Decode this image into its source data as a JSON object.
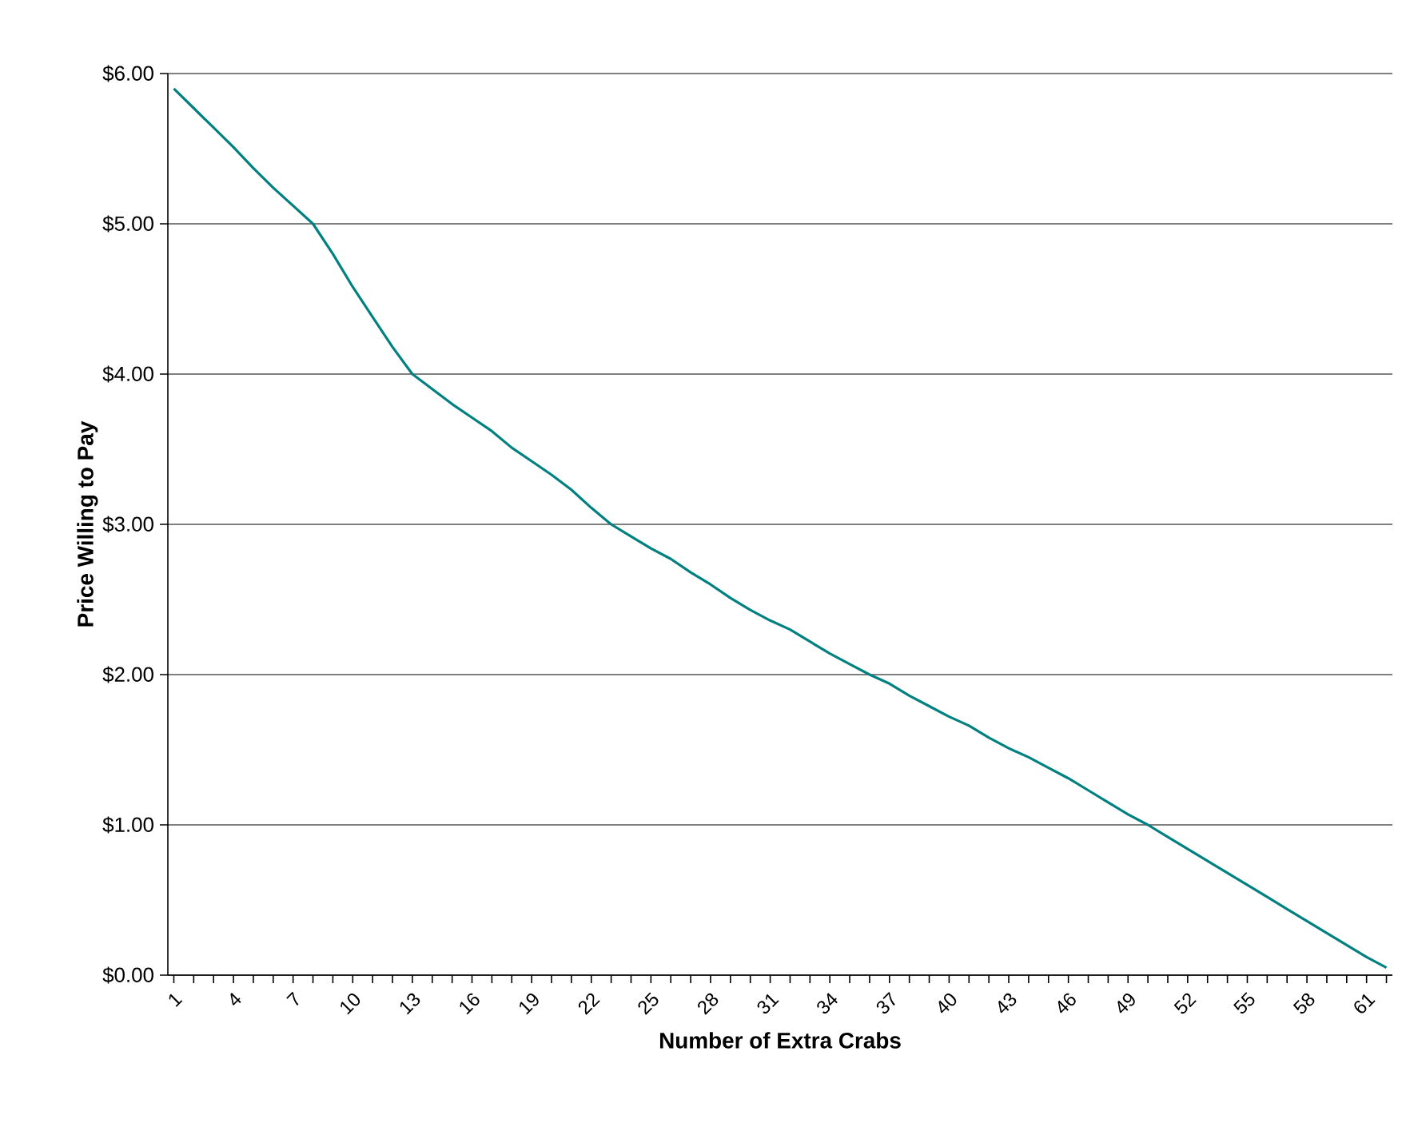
{
  "chart_data": {
    "type": "line",
    "xlabel": "Number of Extra Crabs",
    "ylabel": "Price Willing to Pay",
    "categories": [
      "1",
      null,
      null,
      "4",
      null,
      null,
      "7",
      null,
      null,
      "10",
      null,
      null,
      "13",
      null,
      null,
      "16",
      null,
      null,
      "19",
      null,
      null,
      "22",
      null,
      null,
      "25",
      null,
      null,
      "28",
      null,
      null,
      "31",
      null,
      null,
      "34",
      null,
      null,
      "37",
      null,
      null,
      "40",
      null,
      null,
      "43",
      null,
      null,
      "46",
      null,
      null,
      "49",
      null,
      null,
      "52",
      null,
      null,
      "55",
      null,
      null,
      "58",
      null,
      null,
      "61",
      null
    ],
    "series": [
      {
        "color": "#008080",
        "values": [
          5.9,
          5.77,
          5.64,
          5.51,
          5.37,
          5.24,
          5.12,
          5.0,
          4.8,
          4.58,
          4.38,
          4.18,
          4.0,
          3.9,
          3.8,
          3.71,
          3.62,
          3.51,
          3.42,
          3.33,
          3.23,
          3.11,
          3.0,
          2.92,
          2.84,
          2.77,
          2.68,
          2.6,
          2.51,
          2.43,
          2.36,
          2.3,
          2.22,
          2.14,
          2.07,
          2.0,
          1.94,
          1.86,
          1.79,
          1.72,
          1.66,
          1.58,
          1.51,
          1.45,
          1.38,
          1.31,
          1.23,
          1.15,
          1.07,
          1.0,
          0.92,
          0.84,
          0.76,
          0.68,
          0.6,
          0.52,
          0.44,
          0.36,
          0.28,
          0.2,
          0.12,
          0.05
        ]
      }
    ],
    "ylim": [
      0,
      6
    ],
    "yticks": [
      {
        "value": 0,
        "label": "$0.00"
      },
      {
        "value": 1,
        "label": "$1.00"
      },
      {
        "value": 2,
        "label": "$2.00"
      },
      {
        "value": 3,
        "label": "$3.00"
      },
      {
        "value": 4,
        "label": "$4.00"
      },
      {
        "value": 5,
        "label": "$5.00"
      },
      {
        "value": 6,
        "label": "$6.00"
      }
    ],
    "grid": "y",
    "marker": "none",
    "line_style": "solid"
  }
}
